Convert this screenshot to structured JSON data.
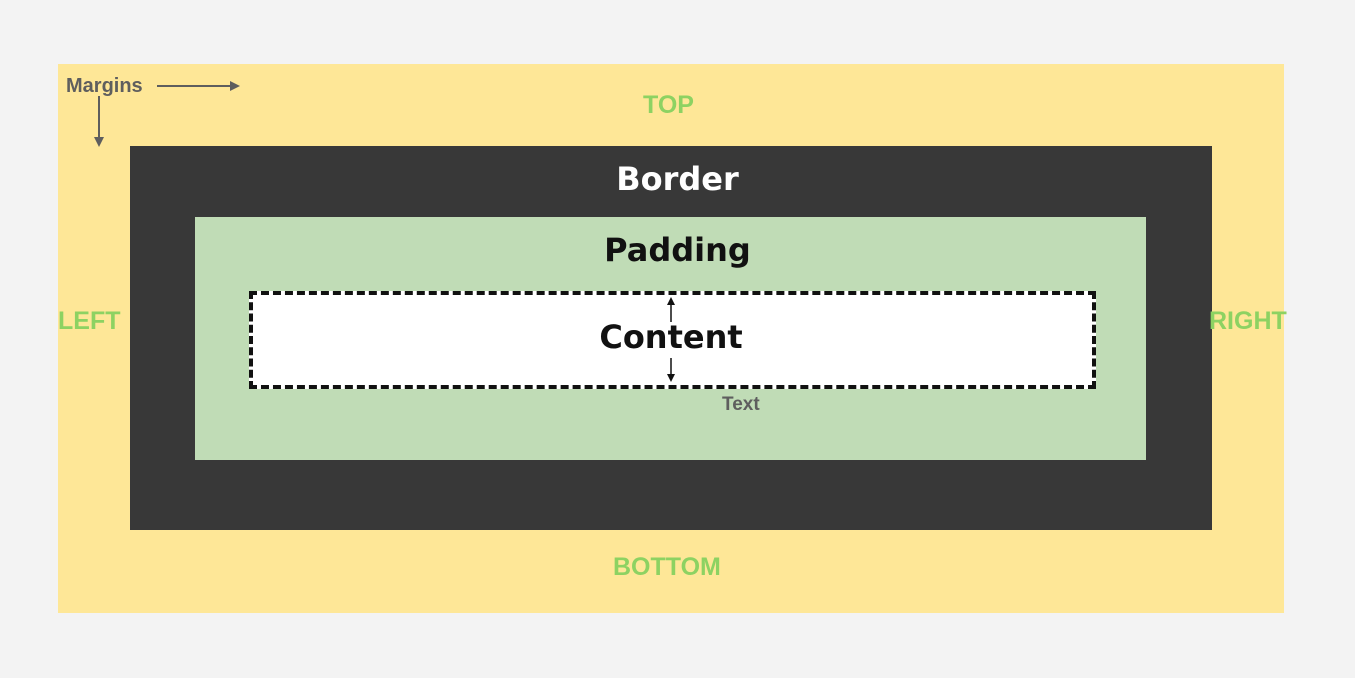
{
  "margin": {
    "label": "Margins",
    "top": "TOP",
    "bottom": "BOTTOM",
    "left": "LEFT",
    "right": "RIGHT",
    "color": "#fee797",
    "label_color": "#8dd262"
  },
  "border": {
    "label": "Border",
    "color": "#383838"
  },
  "padding": {
    "label": "Padding",
    "color": "#c0dcb6"
  },
  "content": {
    "label": "Content",
    "color": "#ffffff"
  },
  "annotation": {
    "text": "Text"
  }
}
